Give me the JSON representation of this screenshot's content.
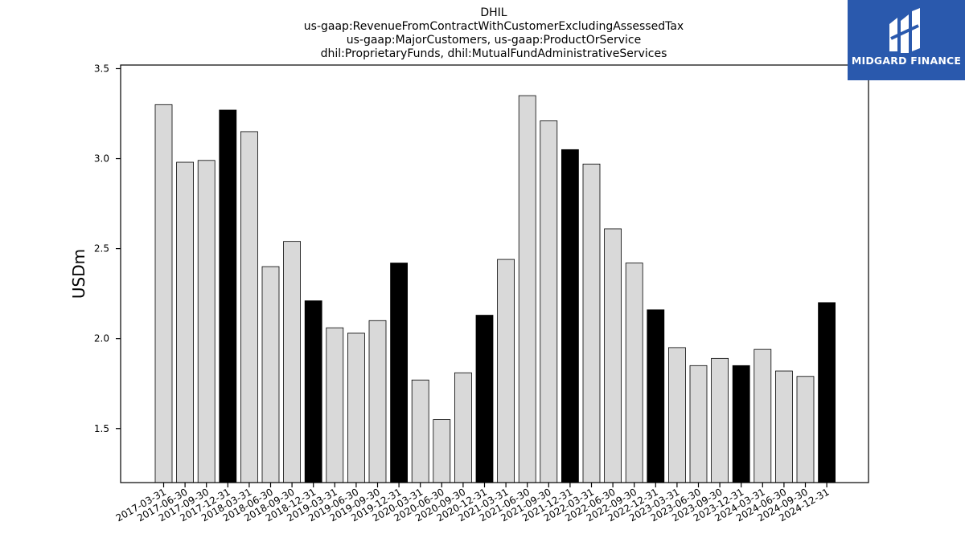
{
  "chart_data": {
    "type": "bar",
    "title": [
      "DHIL",
      "us-gaap:RevenueFromContractWithCustomerExcludingAssessedTax",
      "us-gaap:MajorCustomers, us-gaap:ProductOrService",
      "dhil:ProprietaryFunds, dhil:MutualFundAdministrativeServices"
    ],
    "xlabel": "",
    "ylabel": "USDm",
    "ylim": [
      1.2,
      3.52
    ],
    "yticks": [
      "1.5",
      "2.0",
      "2.5",
      "3.0",
      "3.5"
    ],
    "grid": false,
    "categories": [
      "2017-03-31",
      "2017-06-30",
      "2017-09-30",
      "2017-12-31",
      "2018-03-31",
      "2018-06-30",
      "2018-09-30",
      "2018-12-31",
      "2019-03-31",
      "2019-06-30",
      "2019-09-30",
      "2019-12-31",
      "2020-03-31",
      "2020-06-30",
      "2020-09-30",
      "2020-12-31",
      "2021-03-31",
      "2021-06-30",
      "2021-09-30",
      "2021-12-31",
      "2022-03-31",
      "2022-06-30",
      "2022-09-30",
      "2022-12-31",
      "2023-03-31",
      "2023-06-30",
      "2023-09-30",
      "2023-12-31",
      "2024-03-31",
      "2024-06-30",
      "2024-09-30",
      "2024-12-31"
    ],
    "values": [
      3.3,
      2.98,
      2.99,
      3.27,
      3.15,
      2.4,
      2.54,
      2.21,
      2.06,
      2.03,
      2.1,
      2.42,
      1.77,
      1.55,
      1.81,
      2.13,
      2.44,
      3.35,
      3.21,
      3.05,
      2.97,
      2.61,
      2.42,
      2.16,
      1.95,
      1.85,
      1.89,
      1.85,
      1.94,
      1.82,
      1.79,
      2.2
    ],
    "colors": {
      "quarter": "#d9d9d9",
      "year_end": "#000000",
      "edge": "#000000"
    }
  },
  "logo": {
    "text": "MIDGARD FINANCE",
    "background": "#2a59ad"
  }
}
